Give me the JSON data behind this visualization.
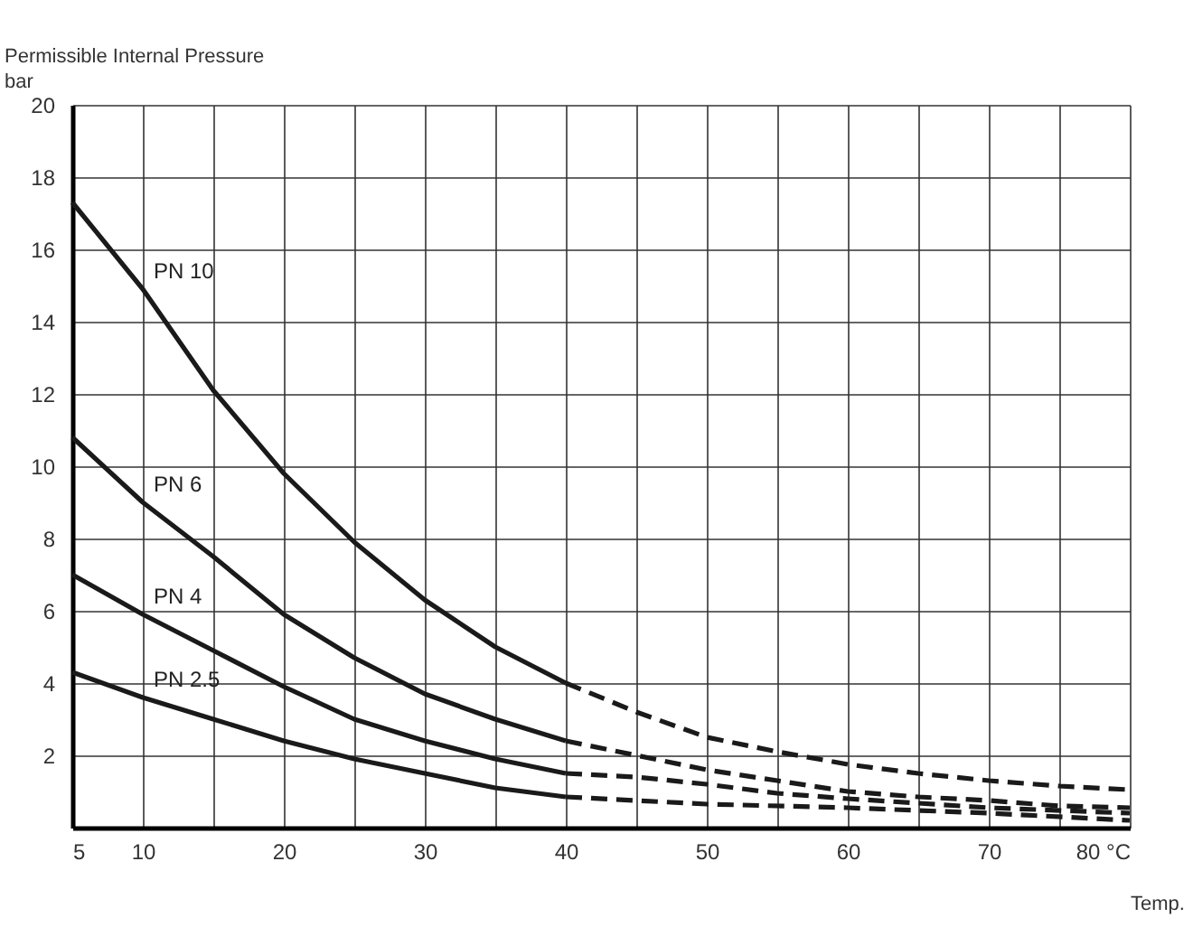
{
  "chart_data": {
    "type": "line",
    "ylabel": "Permissible Internal Pressure\nbar",
    "xlabel": "Temp.",
    "xlim": [
      5,
      80
    ],
    "ylim": [
      0,
      20
    ],
    "xticks": [
      5,
      10,
      {
        "value": 15,
        "label": null
      },
      20,
      {
        "value": 25,
        "label": null
      },
      30,
      {
        "value": 35,
        "label": null
      },
      40,
      {
        "value": 45,
        "label": null
      },
      50,
      {
        "value": 55,
        "label": null
      },
      60,
      {
        "value": 65,
        "label": null
      },
      70,
      {
        "value": 75,
        "label": null
      },
      {
        "value": 80,
        "label": "80 °C"
      }
    ],
    "yticks": [
      2,
      4,
      6,
      8,
      10,
      12,
      14,
      16,
      18,
      20
    ],
    "grid": true,
    "series": [
      {
        "name": "PN 10",
        "color": "#1a1a1a",
        "line_style": "solid",
        "x": [
          5,
          10,
          15,
          20,
          25,
          30,
          35,
          40
        ],
        "values": [
          17.3,
          14.9,
          12.1,
          9.8,
          7.9,
          6.3,
          5.0,
          4.0
        ]
      },
      {
        "name": "PN 6",
        "color": "#1a1a1a",
        "line_style": "solid",
        "x": [
          5,
          10,
          15,
          20,
          25,
          30,
          35,
          40
        ],
        "values": [
          10.8,
          9.0,
          7.5,
          5.9,
          4.7,
          3.7,
          3.0,
          2.4
        ]
      },
      {
        "name": "PN 4",
        "color": "#1a1a1a",
        "line_style": "solid",
        "x": [
          5,
          10,
          15,
          20,
          25,
          30,
          35,
          40
        ],
        "values": [
          7.0,
          5.9,
          4.9,
          3.9,
          3.0,
          2.4,
          1.9,
          1.5
        ]
      },
      {
        "name": "PN 2.5",
        "color": "#1a1a1a",
        "line_style": "solid",
        "x": [
          5,
          10,
          15,
          20,
          25,
          30,
          35,
          40
        ],
        "values": [
          4.3,
          3.6,
          3.0,
          2.4,
          1.9,
          1.5,
          1.1,
          0.85
        ]
      },
      {
        "color": "#1a1a1a",
        "line_style": "dashed",
        "x": [
          40,
          45,
          50,
          55,
          60,
          65,
          70,
          75,
          80
        ],
        "values": [
          4.0,
          3.2,
          2.5,
          2.1,
          1.75,
          1.5,
          1.3,
          1.15,
          1.05
        ]
      },
      {
        "color": "#1a1a1a",
        "line_style": "dashed",
        "x": [
          40,
          45,
          50,
          55,
          60,
          65,
          70,
          75,
          80
        ],
        "values": [
          2.4,
          2.0,
          1.6,
          1.3,
          1.0,
          0.85,
          0.75,
          0.6,
          0.55
        ]
      },
      {
        "color": "#1a1a1a",
        "line_style": "dashed",
        "x": [
          40,
          45,
          50,
          55,
          60,
          70,
          80
        ],
        "values": [
          1.5,
          1.4,
          1.2,
          0.95,
          0.8,
          0.55,
          0.4
        ]
      },
      {
        "color": "#1a1a1a",
        "line_style": "dashed",
        "x": [
          40,
          45,
          50,
          60,
          70,
          80
        ],
        "values": [
          0.85,
          0.75,
          0.65,
          0.55,
          0.4,
          0.2
        ]
      }
    ]
  }
}
